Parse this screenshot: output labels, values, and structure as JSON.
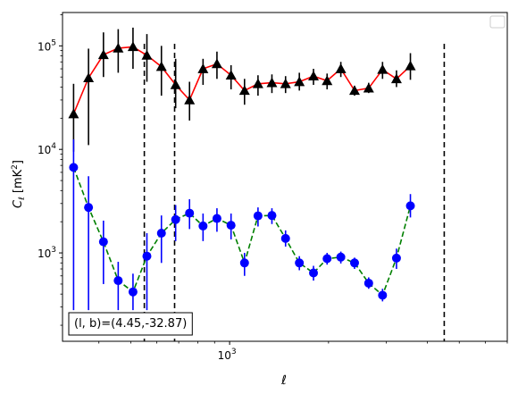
{
  "chart_data": {
    "type": "scatter",
    "title": "",
    "xlabel": "ℓ",
    "ylabel": "C_ℓ  [mK²]",
    "ylabel_parts": {
      "symbol": "C",
      "sub": "ℓ",
      "unit_open": " [mK",
      "unit_sup": "2",
      "unit_close": "]"
    },
    "xscale": "log",
    "yscale": "log",
    "xlim": [
      310,
      7000
    ],
    "ylim": [
      140,
      210000
    ],
    "x_tick_labels": [
      {
        "value": 1000,
        "label": "10",
        "exp": "3"
      }
    ],
    "y_tick_labels": [
      {
        "value": 1000,
        "label": "10",
        "exp": "3"
      },
      {
        "value": 10000,
        "label": "10",
        "exp": "4"
      },
      {
        "value": 100000,
        "label": "10",
        "exp": "5"
      }
    ],
    "legend": {
      "placement": "top-right",
      "entries": []
    },
    "annotation": {
      "text": "(l, b)=(4.45,-32.87)",
      "placement": "bottom-left"
    },
    "vlines": [
      550,
      680,
      4500
    ],
    "series": [
      {
        "marker": "triangle",
        "color": "#000000",
        "line_color": "#ff0000",
        "line_style": "solid",
        "points": [
          {
            "x": 335,
            "y": 22000,
            "ylo": 9500,
            "yhi": 43000
          },
          {
            "x": 372,
            "y": 49000,
            "ylo": 11000,
            "yhi": 94000
          },
          {
            "x": 413,
            "y": 82000,
            "ylo": 50000,
            "yhi": 135000
          },
          {
            "x": 458,
            "y": 95000,
            "ylo": 55000,
            "yhi": 145000
          },
          {
            "x": 508,
            "y": 98000,
            "ylo": 60000,
            "yhi": 150000
          },
          {
            "x": 560,
            "y": 81000,
            "ylo": 45000,
            "yhi": 130000
          },
          {
            "x": 620,
            "y": 63000,
            "ylo": 33000,
            "yhi": 100000
          },
          {
            "x": 685,
            "y": 42000,
            "ylo": 25000,
            "yhi": 75000
          },
          {
            "x": 755,
            "y": 30000,
            "ylo": 19000,
            "yhi": 45000
          },
          {
            "x": 830,
            "y": 60000,
            "ylo": 42000,
            "yhi": 75000
          },
          {
            "x": 915,
            "y": 67000,
            "ylo": 48000,
            "yhi": 88000
          },
          {
            "x": 1010,
            "y": 52000,
            "ylo": 38000,
            "yhi": 65000
          },
          {
            "x": 1110,
            "y": 37000,
            "ylo": 27000,
            "yhi": 48000
          },
          {
            "x": 1220,
            "y": 43000,
            "ylo": 33000,
            "yhi": 52000
          },
          {
            "x": 1345,
            "y": 44000,
            "ylo": 35000,
            "yhi": 53000
          },
          {
            "x": 1480,
            "y": 43000,
            "ylo": 35000,
            "yhi": 51000
          },
          {
            "x": 1630,
            "y": 45000,
            "ylo": 37000,
            "yhi": 55000
          },
          {
            "x": 1800,
            "y": 51000,
            "ylo": 42000,
            "yhi": 60000
          },
          {
            "x": 1980,
            "y": 46000,
            "ylo": 38000,
            "yhi": 54000
          },
          {
            "x": 2180,
            "y": 60000,
            "ylo": 50000,
            "yhi": 70000
          },
          {
            "x": 2400,
            "y": 37000,
            "ylo": 33000,
            "yhi": 41000
          },
          {
            "x": 2650,
            "y": 39000,
            "ylo": 35000,
            "yhi": 44000
          },
          {
            "x": 2920,
            "y": 59000,
            "ylo": 48000,
            "yhi": 70000
          },
          {
            "x": 3220,
            "y": 48000,
            "ylo": 40000,
            "yhi": 58000
          },
          {
            "x": 3550,
            "y": 64000,
            "ylo": 47000,
            "yhi": 85000
          }
        ]
      },
      {
        "marker": "circle",
        "color": "#0000ff",
        "line_color": "#008000",
        "line_style": "dashed",
        "points": [
          {
            "x": 335,
            "y": 6700,
            "ylo": 280,
            "yhi": 12500
          },
          {
            "x": 372,
            "y": 2750,
            "ylo": 280,
            "yhi": 5500
          },
          {
            "x": 413,
            "y": 1280,
            "ylo": 500,
            "yhi": 2050
          },
          {
            "x": 458,
            "y": 540,
            "ylo": 280,
            "yhi": 820
          },
          {
            "x": 508,
            "y": 420,
            "ylo": 280,
            "yhi": 630
          },
          {
            "x": 560,
            "y": 930,
            "ylo": 280,
            "yhi": 1550
          },
          {
            "x": 620,
            "y": 1550,
            "ylo": 800,
            "yhi": 2300
          },
          {
            "x": 685,
            "y": 2100,
            "ylo": 1300,
            "yhi": 2900
          },
          {
            "x": 755,
            "y": 2420,
            "ylo": 1700,
            "yhi": 3300
          },
          {
            "x": 830,
            "y": 1820,
            "ylo": 1300,
            "yhi": 2400
          },
          {
            "x": 915,
            "y": 2150,
            "ylo": 1600,
            "yhi": 2700
          },
          {
            "x": 1010,
            "y": 1850,
            "ylo": 1350,
            "yhi": 2400
          },
          {
            "x": 1110,
            "y": 800,
            "ylo": 600,
            "yhi": 1000
          },
          {
            "x": 1220,
            "y": 2280,
            "ylo": 1800,
            "yhi": 2750
          },
          {
            "x": 1345,
            "y": 2300,
            "ylo": 1900,
            "yhi": 2700
          },
          {
            "x": 1480,
            "y": 1380,
            "ylo": 1150,
            "yhi": 1650
          },
          {
            "x": 1630,
            "y": 800,
            "ylo": 680,
            "yhi": 930
          },
          {
            "x": 1800,
            "y": 640,
            "ylo": 540,
            "yhi": 750
          },
          {
            "x": 1980,
            "y": 880,
            "ylo": 770,
            "yhi": 1000
          },
          {
            "x": 2180,
            "y": 910,
            "ylo": 790,
            "yhi": 1030
          },
          {
            "x": 2400,
            "y": 800,
            "ylo": 700,
            "yhi": 900
          },
          {
            "x": 2650,
            "y": 510,
            "ylo": 450,
            "yhi": 580
          },
          {
            "x": 2920,
            "y": 390,
            "ylo": 340,
            "yhi": 450
          },
          {
            "x": 3220,
            "y": 890,
            "ylo": 700,
            "yhi": 1100
          },
          {
            "x": 3550,
            "y": 2850,
            "ylo": 2200,
            "yhi": 3700
          }
        ]
      }
    ]
  }
}
